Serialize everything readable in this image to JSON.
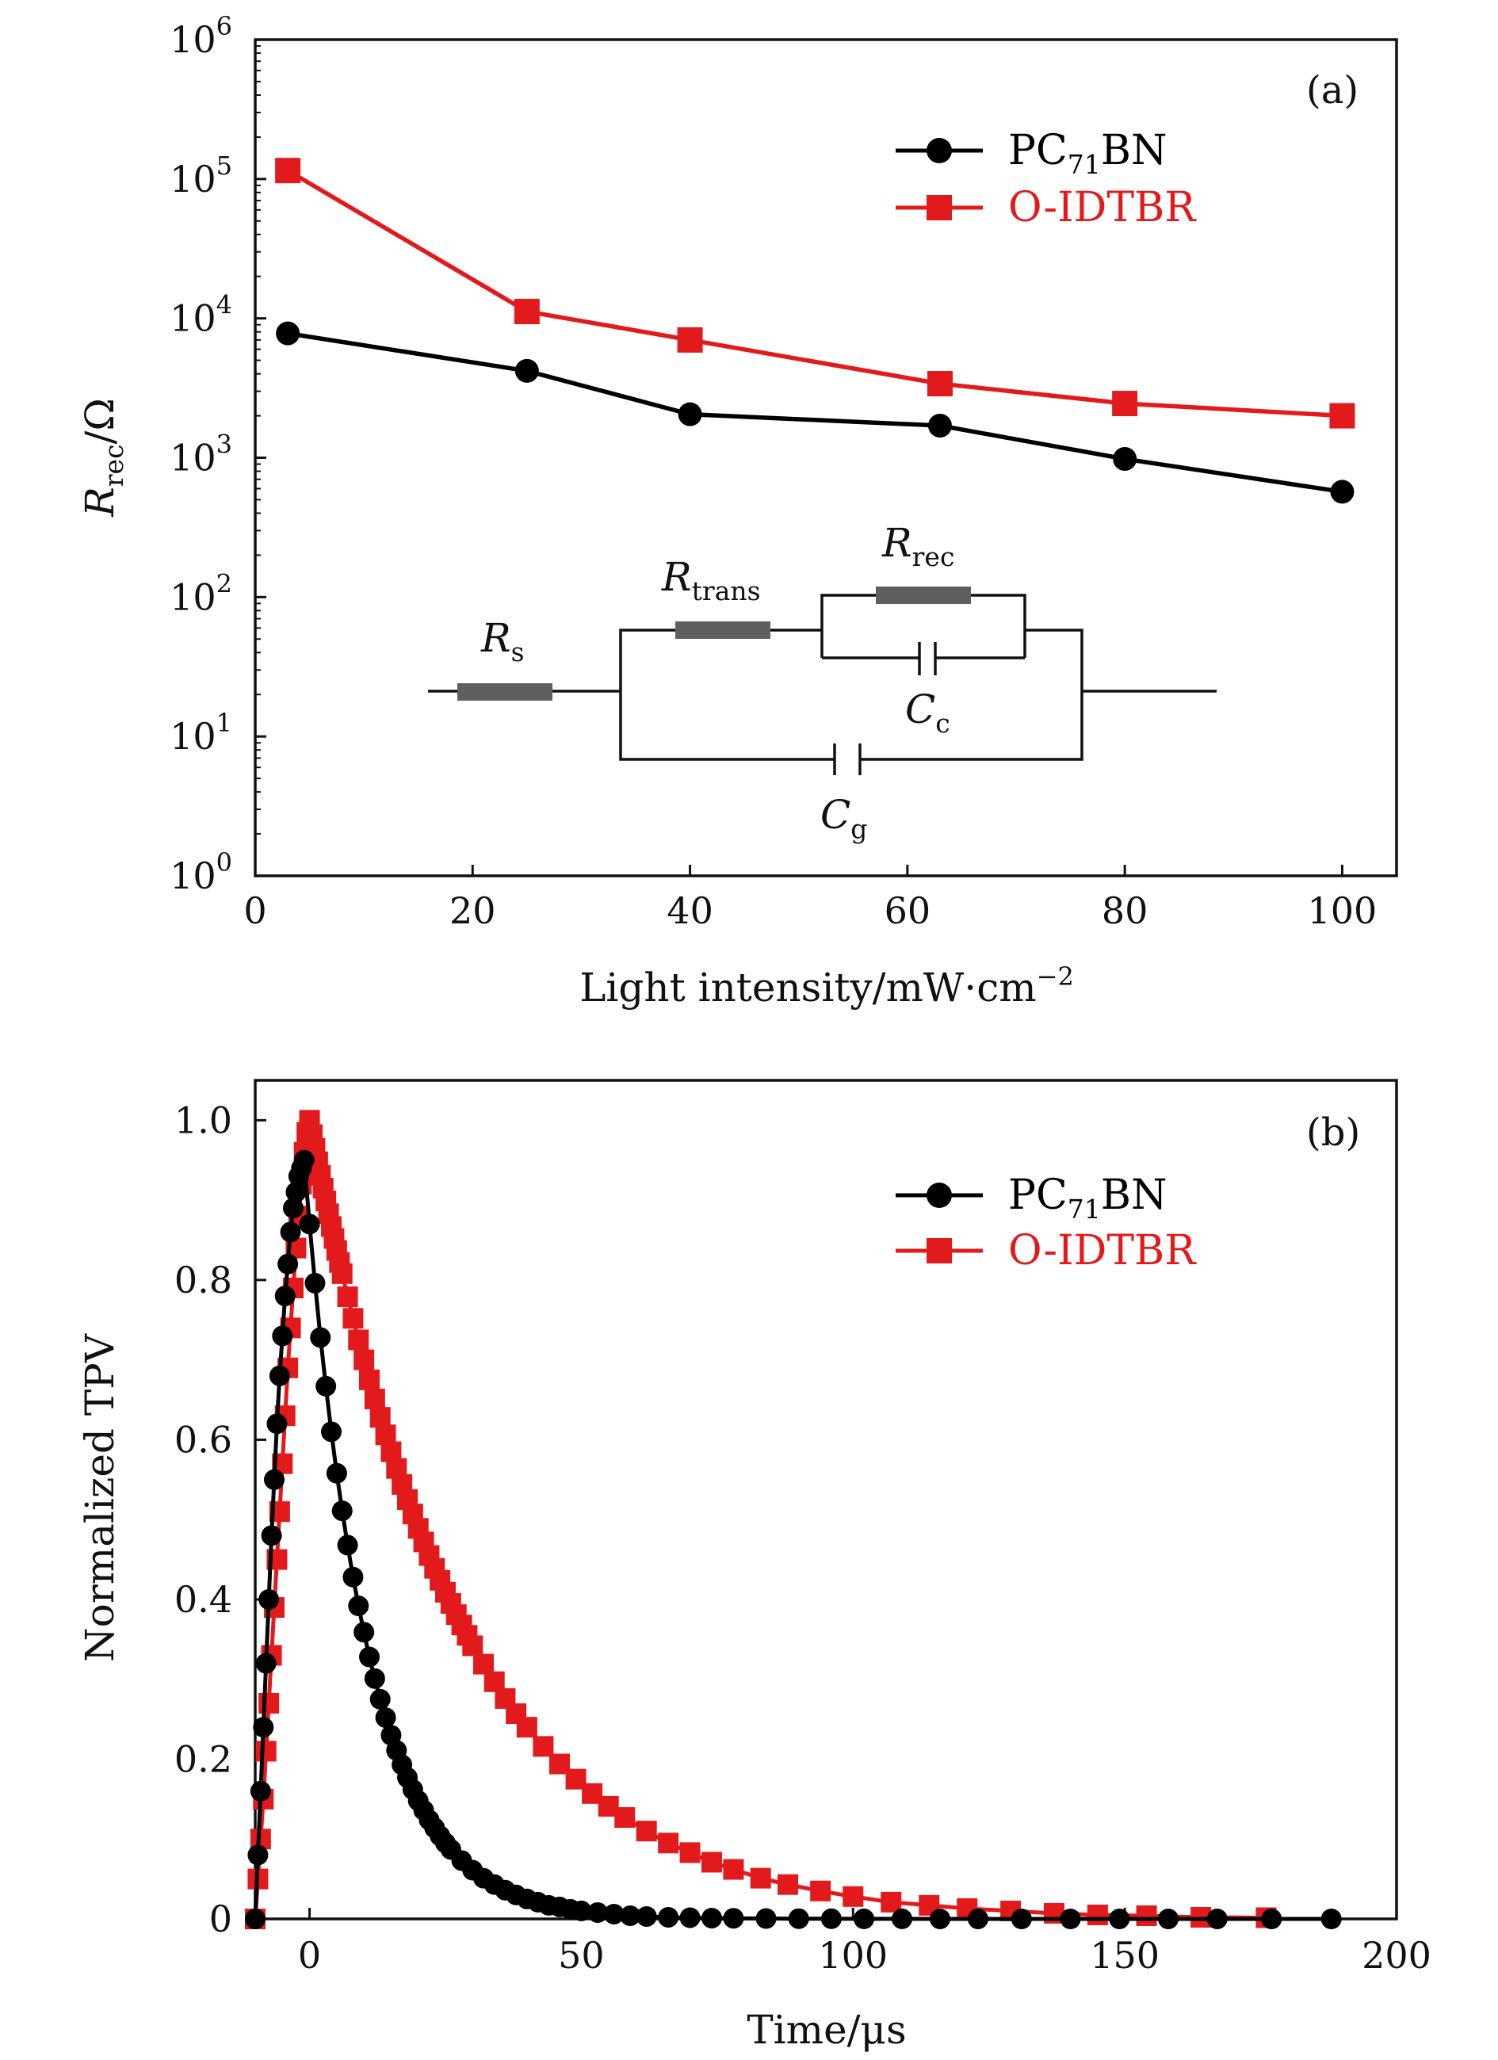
{
  "colors": {
    "pc71bn": "#000000",
    "oidtbr": "#e31a1c",
    "axis": "#111111",
    "resistor": "#5f5f5f"
  },
  "chart_data": [
    {
      "panel_label": "(a)",
      "type": "line",
      "scale": "log-y",
      "xlabel": "Light intensity/mW·cm",
      "xlabel_exponent": "−2",
      "ylabel_main": "R",
      "ylabel_sub": "rec",
      "ylabel_unit": "/Ω",
      "xlim": [
        0,
        105
      ],
      "ylim": [
        1,
        1000000
      ],
      "x_ticks": [
        0,
        20,
        40,
        60,
        80,
        100
      ],
      "y_ticks": [
        {
          "base": "10",
          "exp": "0",
          "value": 1
        },
        {
          "base": "10",
          "exp": "1",
          "value": 10
        },
        {
          "base": "10",
          "exp": "2",
          "value": 100
        },
        {
          "base": "10",
          "exp": "3",
          "value": 1000
        },
        {
          "base": "10",
          "exp": "4",
          "value": 10000
        },
        {
          "base": "10",
          "exp": "5",
          "value": 100000
        },
        {
          "base": "10",
          "exp": "6",
          "value": 1000000
        }
      ],
      "legend_position": "top-right",
      "series": [
        {
          "name_main": "PC",
          "name_sub": "71",
          "name_tail": "BN",
          "marker": "circle",
          "color_key": "pc71bn",
          "x": [
            3,
            25,
            40,
            63,
            80,
            100
          ],
          "y": [
            7800,
            4200,
            2050,
            1700,
            980,
            570
          ]
        },
        {
          "name_main": "O-IDTBR",
          "name_sub": "",
          "name_tail": "",
          "marker": "square",
          "color_key": "oidtbr",
          "x": [
            3,
            25,
            40,
            63,
            80,
            100
          ],
          "y": [
            115000,
            11200,
            7000,
            3400,
            2450,
            2000
          ]
        }
      ],
      "circuit": {
        "labels": [
          {
            "id": "rs",
            "main": "R",
            "sub": "s"
          },
          {
            "id": "rtrans",
            "main": "R",
            "sub": "trans"
          },
          {
            "id": "rrec",
            "main": "R",
            "sub": "rec"
          },
          {
            "id": "cc",
            "main": "C",
            "sub": "c"
          },
          {
            "id": "cg",
            "main": "C",
            "sub": "g"
          }
        ]
      }
    },
    {
      "panel_label": "(b)",
      "type": "scatter",
      "xlabel": "Time/μs",
      "ylabel": "Normalized TPV",
      "xlim": [
        -10,
        200
      ],
      "ylim": [
        0,
        1.05
      ],
      "x_ticks": [
        0,
        50,
        100,
        150,
        200
      ],
      "y_ticks": [
        {
          "label": "0",
          "value": 0
        },
        {
          "label": "0.2",
          "value": 0.2
        },
        {
          "label": "0.4",
          "value": 0.4
        },
        {
          "label": "0.6",
          "value": 0.6
        },
        {
          "label": "0.8",
          "value": 0.8
        },
        {
          "label": "1.0",
          "value": 1.0
        }
      ],
      "legend_position": "top-right",
      "series": [
        {
          "name_main": "PC",
          "name_sub": "71",
          "name_tail": "BN",
          "marker": "circle",
          "color_key": "pc71bn",
          "peak_time": -1,
          "onset_time": -10,
          "decay_tau": 11,
          "rise_points": [
            [
              -10,
              0
            ],
            [
              -9.5,
              0.08
            ],
            [
              -9,
              0.16
            ],
            [
              -8.5,
              0.24
            ],
            [
              -8,
              0.32
            ],
            [
              -7.5,
              0.4
            ],
            [
              -7,
              0.48
            ],
            [
              -6.5,
              0.55
            ],
            [
              -6,
              0.62
            ],
            [
              -5.5,
              0.68
            ],
            [
              -5,
              0.73
            ],
            [
              -4.5,
              0.78
            ],
            [
              -4,
              0.82
            ],
            [
              -3.5,
              0.86
            ],
            [
              -3,
              0.89
            ],
            [
              -2.5,
              0.91
            ],
            [
              -2,
              0.93
            ],
            [
              -1.5,
              0.94
            ],
            [
              -1,
              0.95
            ]
          ],
          "decay_times": [
            0,
            1,
            2,
            3,
            4,
            5,
            6,
            7,
            8,
            9,
            10,
            11,
            12,
            13,
            14,
            15,
            16,
            17,
            18,
            19,
            20,
            21,
            22,
            23,
            24,
            25,
            26,
            28,
            30,
            32,
            34,
            36,
            38,
            40,
            42,
            44,
            46,
            48,
            50,
            53,
            56,
            59,
            62,
            66,
            70,
            74,
            78,
            84,
            90,
            96,
            102,
            109,
            116,
            123,
            131,
            140,
            149,
            158,
            167,
            177,
            188
          ],
          "decay_values": [
            0.87,
            0.796,
            0.728,
            0.667,
            0.61,
            0.558,
            0.511,
            0.468,
            0.428,
            0.392,
            0.359,
            0.328,
            0.301,
            0.275,
            0.252,
            0.23,
            0.211,
            0.193,
            0.177,
            0.162,
            0.148,
            0.136,
            0.124,
            0.114,
            0.104,
            0.095,
            0.087,
            0.073,
            0.061,
            0.051,
            0.043,
            0.036,
            0.03,
            0.025,
            0.021,
            0.017,
            0.015,
            0.012,
            0.01,
            0.008,
            0.006,
            0.004,
            0.003,
            0.002,
            0.0015,
            0.001,
            0.0008,
            0.0005,
            0.0003,
            0.0002,
            0.0001,
            0.0001,
            0,
            0,
            0,
            0,
            0,
            0,
            0,
            0,
            0
          ]
        },
        {
          "name_main": "O-IDTBR",
          "name_sub": "",
          "name_tail": "",
          "marker": "square",
          "color_key": "oidtbr",
          "peak_time": 0,
          "onset_time": -10,
          "decay_tau": 28,
          "rise_points": [
            [
              -10,
              0
            ],
            [
              -9.5,
              0.05
            ],
            [
              -9,
              0.1
            ],
            [
              -8.5,
              0.15
            ],
            [
              -8,
              0.21
            ],
            [
              -7.5,
              0.27
            ],
            [
              -7,
              0.33
            ],
            [
              -6.5,
              0.39
            ],
            [
              -6,
              0.45
            ],
            [
              -5.5,
              0.51
            ],
            [
              -5,
              0.57
            ],
            [
              -4.5,
              0.63
            ],
            [
              -4,
              0.69
            ],
            [
              -3.5,
              0.74
            ],
            [
              -3,
              0.79
            ],
            [
              -2.5,
              0.84
            ],
            [
              -2,
              0.88
            ],
            [
              -1.5,
              0.92
            ],
            [
              -1,
              0.96
            ],
            [
              -0.5,
              0.985
            ],
            [
              0,
              1.0
            ]
          ],
          "decay_times": [
            0.5,
            1,
            1.5,
            2,
            2.5,
            3,
            3.5,
            4,
            4.5,
            5,
            5.5,
            6,
            7,
            8,
            9,
            10,
            11,
            12,
            13,
            14,
            15,
            16,
            17,
            18,
            19,
            20,
            21,
            22,
            23,
            24,
            25,
            26,
            27,
            28,
            29,
            30,
            32,
            34,
            36,
            38,
            40,
            43,
            46,
            49,
            52,
            55,
            58,
            62,
            66,
            70,
            74,
            78,
            83,
            88,
            94,
            100,
            107,
            114,
            121,
            129,
            137,
            145,
            154,
            164,
            176
          ],
          "decay_values": [
            0.982,
            0.965,
            0.948,
            0.931,
            0.915,
            0.899,
            0.883,
            0.867,
            0.852,
            0.837,
            0.822,
            0.808,
            0.779,
            0.752,
            0.725,
            0.7,
            0.675,
            0.651,
            0.628,
            0.606,
            0.585,
            0.564,
            0.544,
            0.525,
            0.507,
            0.489,
            0.472,
            0.455,
            0.439,
            0.424,
            0.409,
            0.395,
            0.381,
            0.368,
            0.355,
            0.342,
            0.319,
            0.297,
            0.276,
            0.257,
            0.24,
            0.216,
            0.194,
            0.175,
            0.157,
            0.141,
            0.127,
            0.11,
            0.095,
            0.083,
            0.071,
            0.062,
            0.051,
            0.043,
            0.035,
            0.028,
            0.021,
            0.017,
            0.013,
            0.01,
            0.007,
            0.005,
            0.004,
            0.002,
            0.0015
          ]
        }
      ]
    }
  ]
}
